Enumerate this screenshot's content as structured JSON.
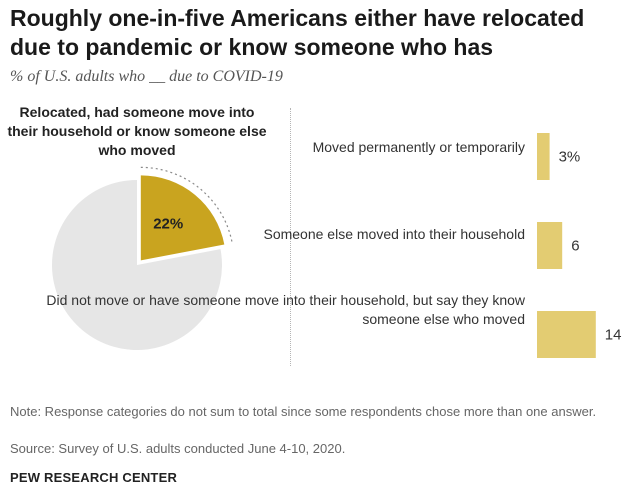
{
  "title": "Roughly one-in-five Americans either have relocated due to pandemic or know someone who has",
  "subtitle": "% of U.S. adults who __ due to COVID-19",
  "chart_data": [
    {
      "type": "pie",
      "label": "Relocated, had someone move into their household or know someone else who moved",
      "slices": [
        {
          "label": "22%",
          "value": 22,
          "color": "#c9a41f"
        },
        {
          "label": "",
          "value": 78,
          "color": "#e6e6e6"
        }
      ]
    },
    {
      "type": "bar",
      "orientation": "horizontal",
      "categories": [
        "Moved permanently or temporarily",
        "Someone else moved into their household",
        "Did not move or have someone move into their household, but say they know someone else who moved"
      ],
      "values": [
        3,
        6,
        14
      ],
      "value_labels": [
        "3%",
        "6",
        "14"
      ],
      "color": "#e3cc72"
    }
  ],
  "note": "Note: Response categories do not sum to total since some respondents chose more than one answer.",
  "source": "Source: Survey of U.S. adults conducted June 4-10, 2020.",
  "brand": "PEW RESEARCH CENTER"
}
